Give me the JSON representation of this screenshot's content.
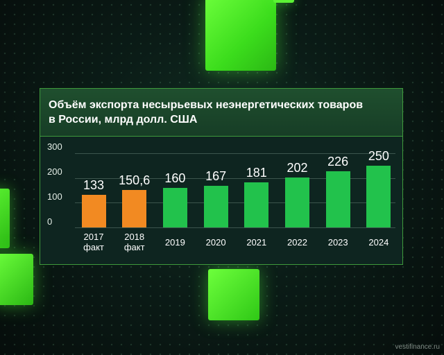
{
  "chart_data": {
    "type": "bar",
    "title": "Объём экспорта несырьевых неэнергетических товаров\nв России, млрд долл. США",
    "categories": [
      "2017\nфакт",
      "2018\nфакт",
      "2019",
      "2020",
      "2021",
      "2022",
      "2023",
      "2024"
    ],
    "value_labels": [
      "133",
      "150,6",
      "160",
      "167",
      "181",
      "202",
      "226",
      "250"
    ],
    "values": [
      133,
      150.6,
      160,
      167,
      181,
      202,
      226,
      250
    ],
    "bar_colors": [
      "#f28a22",
      "#f28a22",
      "#22c24c",
      "#22c24c",
      "#22c24c",
      "#22c24c",
      "#22c24c",
      "#22c24c"
    ],
    "yticks": [
      "300",
      "200",
      "100",
      "0"
    ],
    "ylim": [
      0,
      300
    ],
    "grid": true
  },
  "credit": "vestifinance.ru",
  "colors": {
    "actual": "#f28a22",
    "forecast": "#22c24c",
    "accent": "#5cf335"
  }
}
